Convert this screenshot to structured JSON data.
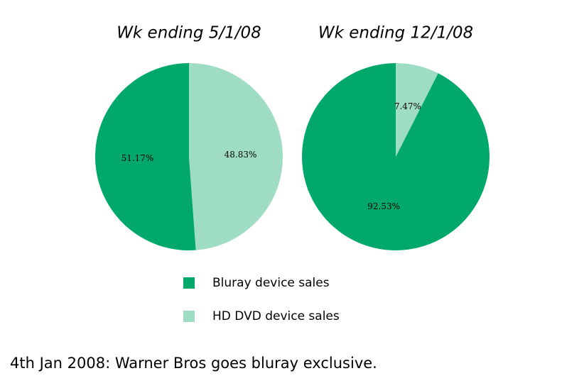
{
  "chart_data": [
    {
      "type": "pie",
      "title": "Wk ending 5/1/08",
      "values": [
        51.17,
        48.83
      ],
      "value_labels": [
        "51.17%",
        "48.83%"
      ]
    },
    {
      "type": "pie",
      "title": "Wk ending 12/1/08",
      "values": [
        92.53,
        7.47
      ],
      "value_labels": [
        "92.53%",
        "7.47%"
      ]
    }
  ],
  "legend": {
    "labels": [
      "Bluray device sales",
      "HD DVD device sales"
    ],
    "colors": [
      "#00a86b",
      "#9fdcc4"
    ]
  },
  "caption": "4th Jan 2008: Warner Bros goes bluray exclusive."
}
